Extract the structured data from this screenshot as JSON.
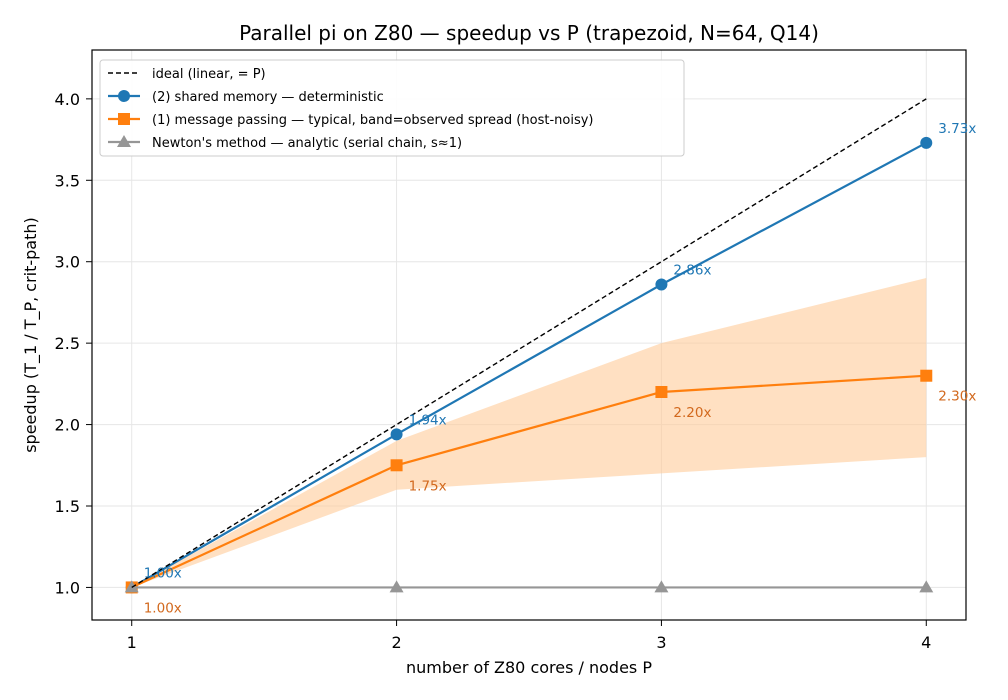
{
  "chart_data": {
    "type": "line",
    "title": "Parallel pi on Z80 — speedup vs P  (trapezoid, N=64, Q14)",
    "xlabel": "number of Z80 cores / nodes  P",
    "ylabel": "speedup  (T_1 / T_P, crit-path)",
    "x": [
      1,
      2,
      3,
      4
    ],
    "xticks": [
      "1",
      "2",
      "3",
      "4"
    ],
    "xlim": [
      0.85,
      4.15
    ],
    "ylim": [
      0.8,
      4.3
    ],
    "yticks": [
      "1.0",
      "1.5",
      "2.0",
      "2.5",
      "3.0",
      "3.5",
      "4.0"
    ],
    "grid": true,
    "legend_position": "top-left",
    "series": [
      {
        "name": "ideal (linear, = P)",
        "style": "dashed",
        "color": "#000000",
        "values": [
          1,
          2,
          3,
          4
        ]
      },
      {
        "name": "(2) shared memory — deterministic",
        "style": "solid",
        "marker": "circle",
        "color": "#1f77b4",
        "values": [
          1.0,
          1.94,
          2.86,
          3.73
        ],
        "labels": [
          "1.00x",
          "1.94x",
          "2.86x",
          "3.73x"
        ]
      },
      {
        "name": "(1) message passing — typical, band=observed spread (host-noisy)",
        "style": "solid",
        "marker": "square",
        "color": "#ff7f0e",
        "label_color": "#d2691e",
        "band_color": "#ffcc99",
        "values": [
          1.0,
          1.75,
          2.2,
          2.3
        ],
        "band_low": [
          1.0,
          1.6,
          1.7,
          1.8
        ],
        "band_high": [
          1.0,
          1.9,
          2.5,
          2.9
        ],
        "labels": [
          "1.00x",
          "1.75x",
          "2.20x",
          "2.30x"
        ]
      },
      {
        "name": "Newton's method — analytic (serial chain, s≈1)",
        "style": "solid",
        "marker": "triangle",
        "color": "#969696",
        "values": [
          1.0,
          1.0,
          1.0,
          1.0
        ]
      }
    ]
  }
}
